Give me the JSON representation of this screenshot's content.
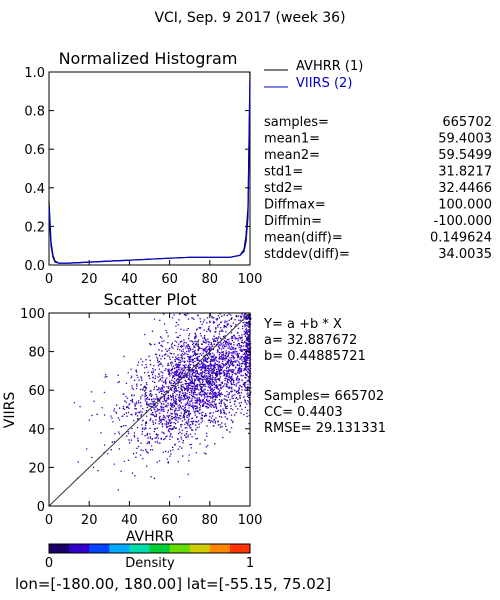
{
  "title": "VCI,  Sep. 9 2017 (week 36)",
  "histogram": {
    "title": "Normalized Histogram",
    "y_ticks": [
      "0.0",
      "0.2",
      "0.4",
      "0.6",
      "0.8",
      "1.0"
    ],
    "x_ticks": [
      "0",
      "20",
      "40",
      "60",
      "80",
      "100"
    ],
    "legend": [
      {
        "label": "AVHRR (1)",
        "color": "#000000"
      },
      {
        "label": "VIIRS (2)",
        "color": "#0000cc"
      }
    ]
  },
  "stats": [
    {
      "label": "samples=",
      "value": "665702"
    },
    {
      "label": "mean1=",
      "value": "59.4003"
    },
    {
      "label": "mean2=",
      "value": "59.5499"
    },
    {
      "label": "std1=",
      "value": "31.8217"
    },
    {
      "label": "std2=",
      "value": "32.4466"
    },
    {
      "label": "Diffmax=",
      "value": "100.000"
    },
    {
      "label": "Diffmin=",
      "value": "-100.000"
    },
    {
      "label": "mean(diff)=",
      "value": "0.149624"
    },
    {
      "label": "stddev(diff)=",
      "value": "34.0035"
    }
  ],
  "scatter": {
    "title": "Scatter Plot",
    "xlabel": "AVHRR",
    "ylabel": "VIIRS",
    "x_ticks": [
      "0",
      "20",
      "40",
      "60",
      "80",
      "100"
    ],
    "y_ticks": [
      "0",
      "20",
      "40",
      "60",
      "80",
      "100"
    ],
    "regression_lines": [
      "Y= a +b * X",
      "a= 32.887672",
      "b= 0.44885721"
    ],
    "metric_lines": [
      "Samples= 665702",
      "CC=  0.4403",
      "RMSE= 29.131331"
    ]
  },
  "colorbar": {
    "label": "Density",
    "min_label": "0",
    "max_label": "1",
    "colors": [
      "#1a0066",
      "#3300cc",
      "#0044ff",
      "#00aaff",
      "#00ddaa",
      "#00cc33",
      "#66dd00",
      "#cccc00",
      "#ff8800",
      "#ff3300"
    ]
  },
  "footer": "lon=[-180.00, 180.00] lat=[-55.15, 75.02]",
  "chart_data": [
    {
      "type": "line",
      "title": "Normalized Histogram",
      "xlim": [
        0,
        100
      ],
      "ylim": [
        0,
        1.0
      ],
      "series": [
        {
          "name": "AVHRR (1)",
          "color": "#000000",
          "x": [
            0,
            1,
            2,
            3,
            5,
            10,
            20,
            30,
            40,
            50,
            60,
            70,
            80,
            90,
            95,
            97,
            98,
            99,
            100
          ],
          "y": [
            0.33,
            0.12,
            0.05,
            0.02,
            0.01,
            0.01,
            0.015,
            0.02,
            0.025,
            0.03,
            0.035,
            0.04,
            0.04,
            0.04,
            0.05,
            0.08,
            0.15,
            0.3,
            1.0
          ]
        },
        {
          "name": "VIIRS (2)",
          "color": "#0000cc",
          "x": [
            0,
            1,
            2,
            3,
            5,
            10,
            20,
            30,
            40,
            50,
            60,
            70,
            80,
            90,
            95,
            97,
            98,
            99,
            100
          ],
          "y": [
            0.3,
            0.1,
            0.04,
            0.015,
            0.01,
            0.01,
            0.015,
            0.02,
            0.025,
            0.03,
            0.035,
            0.04,
            0.04,
            0.04,
            0.05,
            0.07,
            0.12,
            0.25,
            0.95
          ]
        }
      ]
    },
    {
      "type": "scatter",
      "title": "Scatter Plot",
      "xlabel": "AVHRR",
      "ylabel": "VIIRS",
      "xlim": [
        0,
        100
      ],
      "ylim": [
        0,
        100
      ],
      "regression": {
        "a": 32.887672,
        "b": 0.44885721
      },
      "reference_line": "1:1",
      "point_cloud": {
        "x_center": 75,
        "y_center": 66,
        "x_spread": 18,
        "y_spread": 14,
        "count": 3000
      }
    }
  ]
}
